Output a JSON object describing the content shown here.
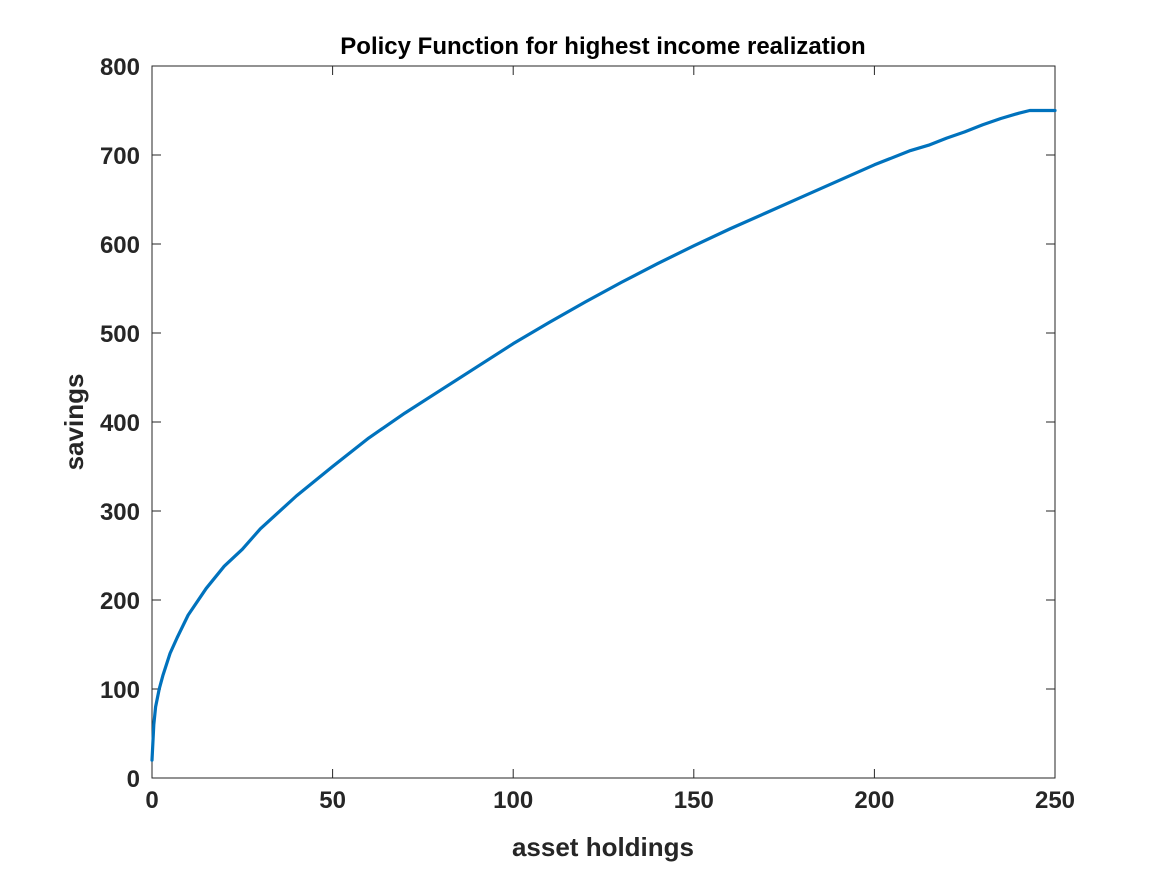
{
  "chart_data": {
    "type": "line",
    "title": "Policy Function for highest income realization",
    "xlabel": "asset holdings",
    "ylabel": "savings",
    "xlim": [
      0,
      250
    ],
    "ylim": [
      0,
      800
    ],
    "xticks": [
      0,
      50,
      100,
      150,
      200,
      250
    ],
    "yticks": [
      0,
      100,
      200,
      300,
      400,
      500,
      600,
      700,
      800
    ],
    "grid": false,
    "box": true,
    "series": [
      {
        "color": "#0072BD",
        "x": [
          0,
          0.5,
          1,
          2,
          3,
          5,
          7,
          10,
          15,
          20,
          25,
          30,
          40,
          50,
          60,
          70,
          80,
          90,
          100,
          110,
          120,
          130,
          140,
          150,
          160,
          170,
          180,
          190,
          200,
          210,
          215,
          220,
          225,
          230,
          235,
          240,
          243,
          245,
          247,
          250
        ],
        "y": [
          20,
          60,
          80,
          100,
          115,
          140,
          158,
          183,
          213,
          238,
          257,
          280,
          317,
          350,
          382,
          410,
          436,
          462,
          488,
          512,
          535,
          557,
          578,
          598,
          617,
          635,
          653,
          671,
          689,
          705,
          711,
          719,
          726,
          734,
          741,
          747,
          750,
          750,
          750,
          750
        ]
      }
    ]
  }
}
